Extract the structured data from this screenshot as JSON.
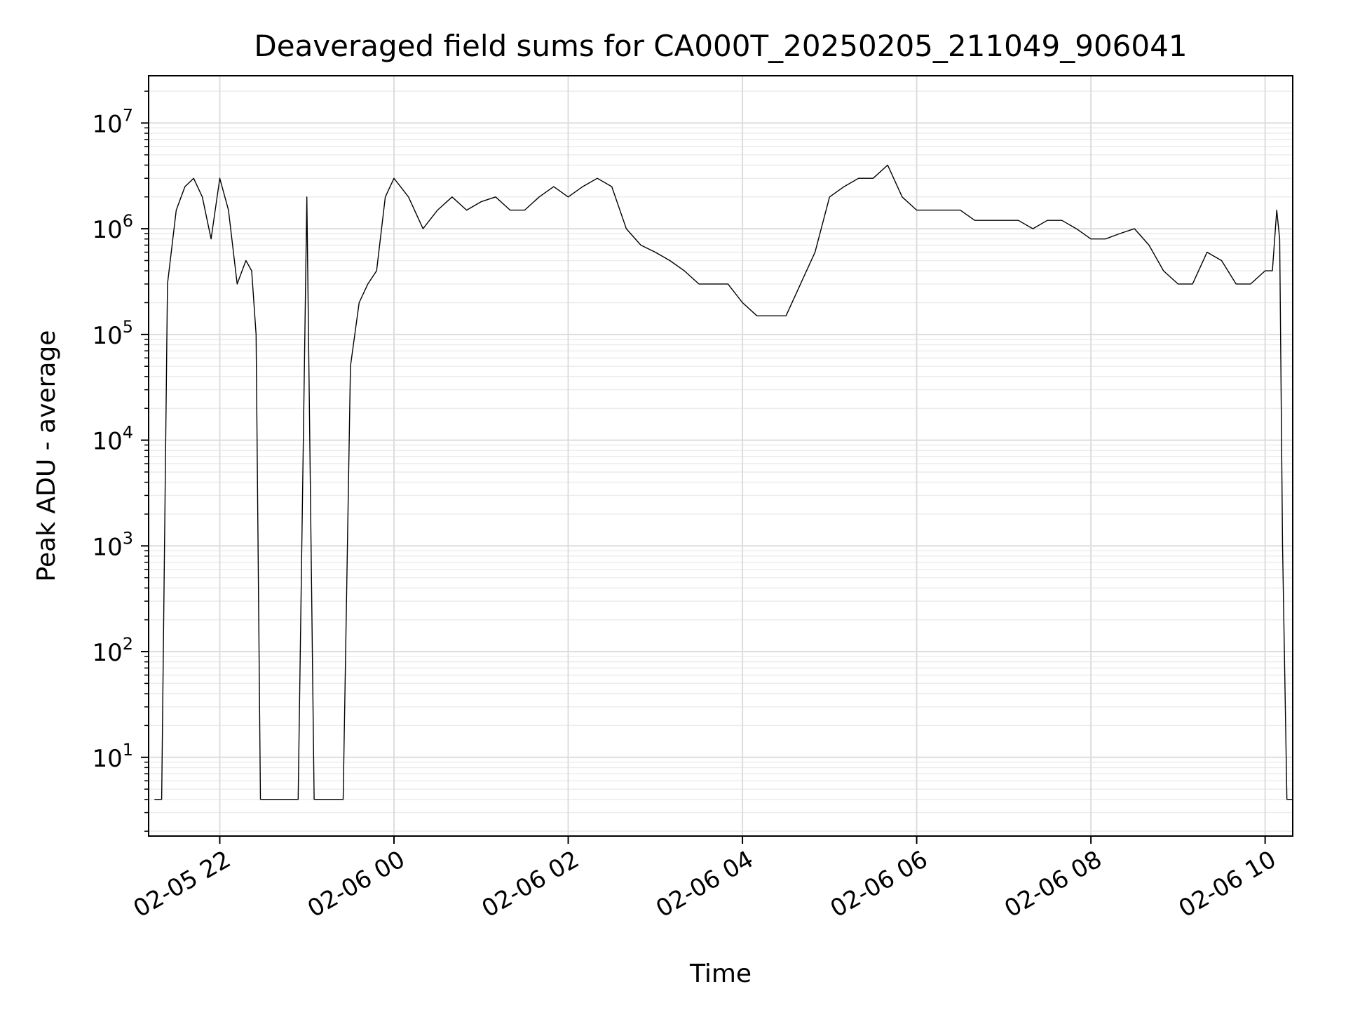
{
  "chart_data": {
    "type": "line",
    "title": "Deaveraged field sums for CA000T_20250205_211049_906041",
    "xlabel": "Time",
    "ylabel": "Peak ADU - average",
    "yscale": "log",
    "ylim": [
      1.8,
      28000000
    ],
    "xlim": [
      "2025-02-05 21:11",
      "2025-02-06 10:19"
    ],
    "grid": "major and minor, light gray",
    "line_color": "#000000",
    "x_ticks": [
      "02-05 22",
      "02-06 00",
      "02-06 02",
      "02-06 04",
      "02-06 06",
      "02-06 08",
      "02-06 10"
    ],
    "y_ticks": [
      {
        "base": "10",
        "exp": "1"
      },
      {
        "base": "10",
        "exp": "2"
      },
      {
        "base": "10",
        "exp": "3"
      },
      {
        "base": "10",
        "exp": "4"
      },
      {
        "base": "10",
        "exp": "5"
      },
      {
        "base": "10",
        "exp": "6"
      },
      {
        "base": "10",
        "exp": "7"
      }
    ],
    "series": [
      {
        "x": [
          "2025-02-05 21:15",
          "2025-02-05 21:17",
          "2025-02-05 21:20",
          "2025-02-05 21:24",
          "2025-02-05 21:30",
          "2025-02-05 21:36",
          "2025-02-05 21:42",
          "2025-02-05 21:48",
          "2025-02-05 21:54",
          "2025-02-05 22:00",
          "2025-02-05 22:06",
          "2025-02-05 22:12",
          "2025-02-05 22:18",
          "2025-02-05 22:22",
          "2025-02-05 22:25",
          "2025-02-05 22:28",
          "2025-02-05 22:36",
          "2025-02-05 22:40",
          "2025-02-05 22:44",
          "2025-02-05 22:48",
          "2025-02-05 22:54",
          "2025-02-05 23:00",
          "2025-02-05 23:05",
          "2025-02-05 23:10",
          "2025-02-05 23:15",
          "2025-02-05 23:20",
          "2025-02-05 23:25",
          "2025-02-05 23:30",
          "2025-02-05 23:36",
          "2025-02-05 23:42",
          "2025-02-05 23:48",
          "2025-02-05 23:54",
          "2025-02-06 00:00",
          "2025-02-06 00:10",
          "2025-02-06 00:20",
          "2025-02-06 00:30",
          "2025-02-06 00:40",
          "2025-02-06 00:50",
          "2025-02-06 01:00",
          "2025-02-06 01:10",
          "2025-02-06 01:20",
          "2025-02-06 01:30",
          "2025-02-06 01:40",
          "2025-02-06 01:50",
          "2025-02-06 02:00",
          "2025-02-06 02:10",
          "2025-02-06 02:20",
          "2025-02-06 02:30",
          "2025-02-06 02:40",
          "2025-02-06 02:50",
          "2025-02-06 03:00",
          "2025-02-06 03:10",
          "2025-02-06 03:20",
          "2025-02-06 03:30",
          "2025-02-06 03:40",
          "2025-02-06 03:50",
          "2025-02-06 04:00",
          "2025-02-06 04:10",
          "2025-02-06 04:20",
          "2025-02-06 04:30",
          "2025-02-06 04:40",
          "2025-02-06 04:50",
          "2025-02-06 05:00",
          "2025-02-06 05:10",
          "2025-02-06 05:20",
          "2025-02-06 05:30",
          "2025-02-06 05:40",
          "2025-02-06 05:50",
          "2025-02-06 06:00",
          "2025-02-06 06:10",
          "2025-02-06 06:20",
          "2025-02-06 06:30",
          "2025-02-06 06:40",
          "2025-02-06 06:50",
          "2025-02-06 07:00",
          "2025-02-06 07:10",
          "2025-02-06 07:20",
          "2025-02-06 07:30",
          "2025-02-06 07:40",
          "2025-02-06 07:50",
          "2025-02-06 08:00",
          "2025-02-06 08:10",
          "2025-02-06 08:20",
          "2025-02-06 08:30",
          "2025-02-06 08:40",
          "2025-02-06 08:50",
          "2025-02-06 09:00",
          "2025-02-06 09:10",
          "2025-02-06 09:20",
          "2025-02-06 09:30",
          "2025-02-06 09:40",
          "2025-02-06 09:50",
          "2025-02-06 10:00",
          "2025-02-06 10:05",
          "2025-02-06 10:08",
          "2025-02-06 10:10",
          "2025-02-06 10:12",
          "2025-02-06 10:15",
          "2025-02-06 10:19"
        ],
        "y": [
          4,
          4,
          4,
          300000,
          1500000,
          2500000,
          3000000,
          2000000,
          800000,
          3000000,
          1500000,
          300000,
          500000,
          400000,
          100000,
          4,
          4,
          4,
          4,
          4,
          4,
          2000000,
          4,
          4,
          4,
          4,
          4,
          50000,
          200000,
          300000,
          400000,
          2000000,
          3000000,
          2000000,
          1000000,
          1500000,
          2000000,
          1500000,
          1800000,
          2000000,
          1500000,
          1500000,
          2000000,
          2500000,
          2000000,
          2500000,
          3000000,
          2500000,
          1000000,
          700000,
          600000,
          500000,
          400000,
          300000,
          300000,
          300000,
          200000,
          150000,
          150000,
          150000,
          300000,
          600000,
          2000000,
          2500000,
          3000000,
          3000000,
          4000000,
          2000000,
          1500000,
          1500000,
          1500000,
          1500000,
          1200000,
          1200000,
          1200000,
          1200000,
          1000000,
          1200000,
          1200000,
          1000000,
          800000,
          800000,
          900000,
          1000000,
          700000,
          400000,
          300000,
          300000,
          600000,
          500000,
          300000,
          300000,
          400000,
          400000,
          1500000,
          800000,
          1000,
          4,
          4
        ]
      }
    ]
  }
}
